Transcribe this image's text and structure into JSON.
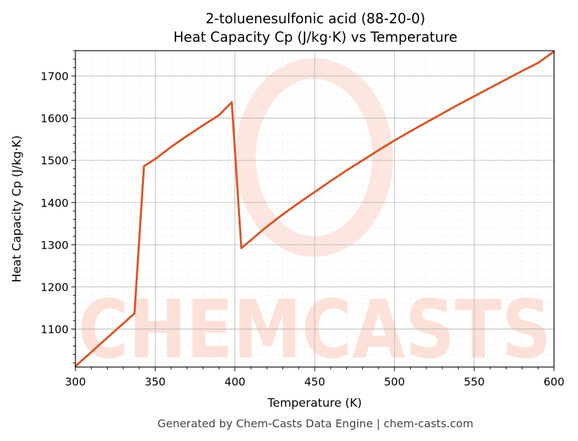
{
  "chart_data": {
    "type": "line",
    "title": "2-toluenesulfonic acid (88-20-0)",
    "subtitle": "Heat Capacity Cp (J/kg·K) vs Temperature",
    "xlabel": "Temperature (K)",
    "ylabel": "Heat Capacity Cp (J/kg·K)",
    "xlim": [
      300,
      600
    ],
    "ylim": [
      1010,
      1760
    ],
    "xticks": [
      300,
      350,
      400,
      450,
      500,
      550,
      600
    ],
    "yticks": [
      1100,
      1200,
      1300,
      1400,
      1500,
      1600,
      1700
    ],
    "grid": true,
    "series": [
      {
        "name": "",
        "color": "#d95525",
        "x": [
          300,
          337,
          343,
          350,
          360,
          370,
          380,
          390,
          398,
          404,
          410,
          420,
          430,
          440,
          450,
          460,
          470,
          480,
          490,
          500,
          510,
          520,
          530,
          540,
          550,
          560,
          570,
          580,
          590,
          600
        ],
        "y": [
          1012,
          1137,
          1486,
          1503,
          1532,
          1558,
          1583,
          1607,
          1638,
          1292,
          1311,
          1343,
          1372,
          1399,
          1425,
          1451,
          1476,
          1500,
          1524,
          1547,
          1569,
          1590,
          1611,
          1632,
          1652,
          1672,
          1692,
          1712,
          1731,
          1758
        ]
      }
    ]
  },
  "watermark": {
    "text": "CHEMCASTS",
    "color": "#fde0d8"
  },
  "footer": "Generated by Chem-Casts Data Engine | chem-casts.com"
}
